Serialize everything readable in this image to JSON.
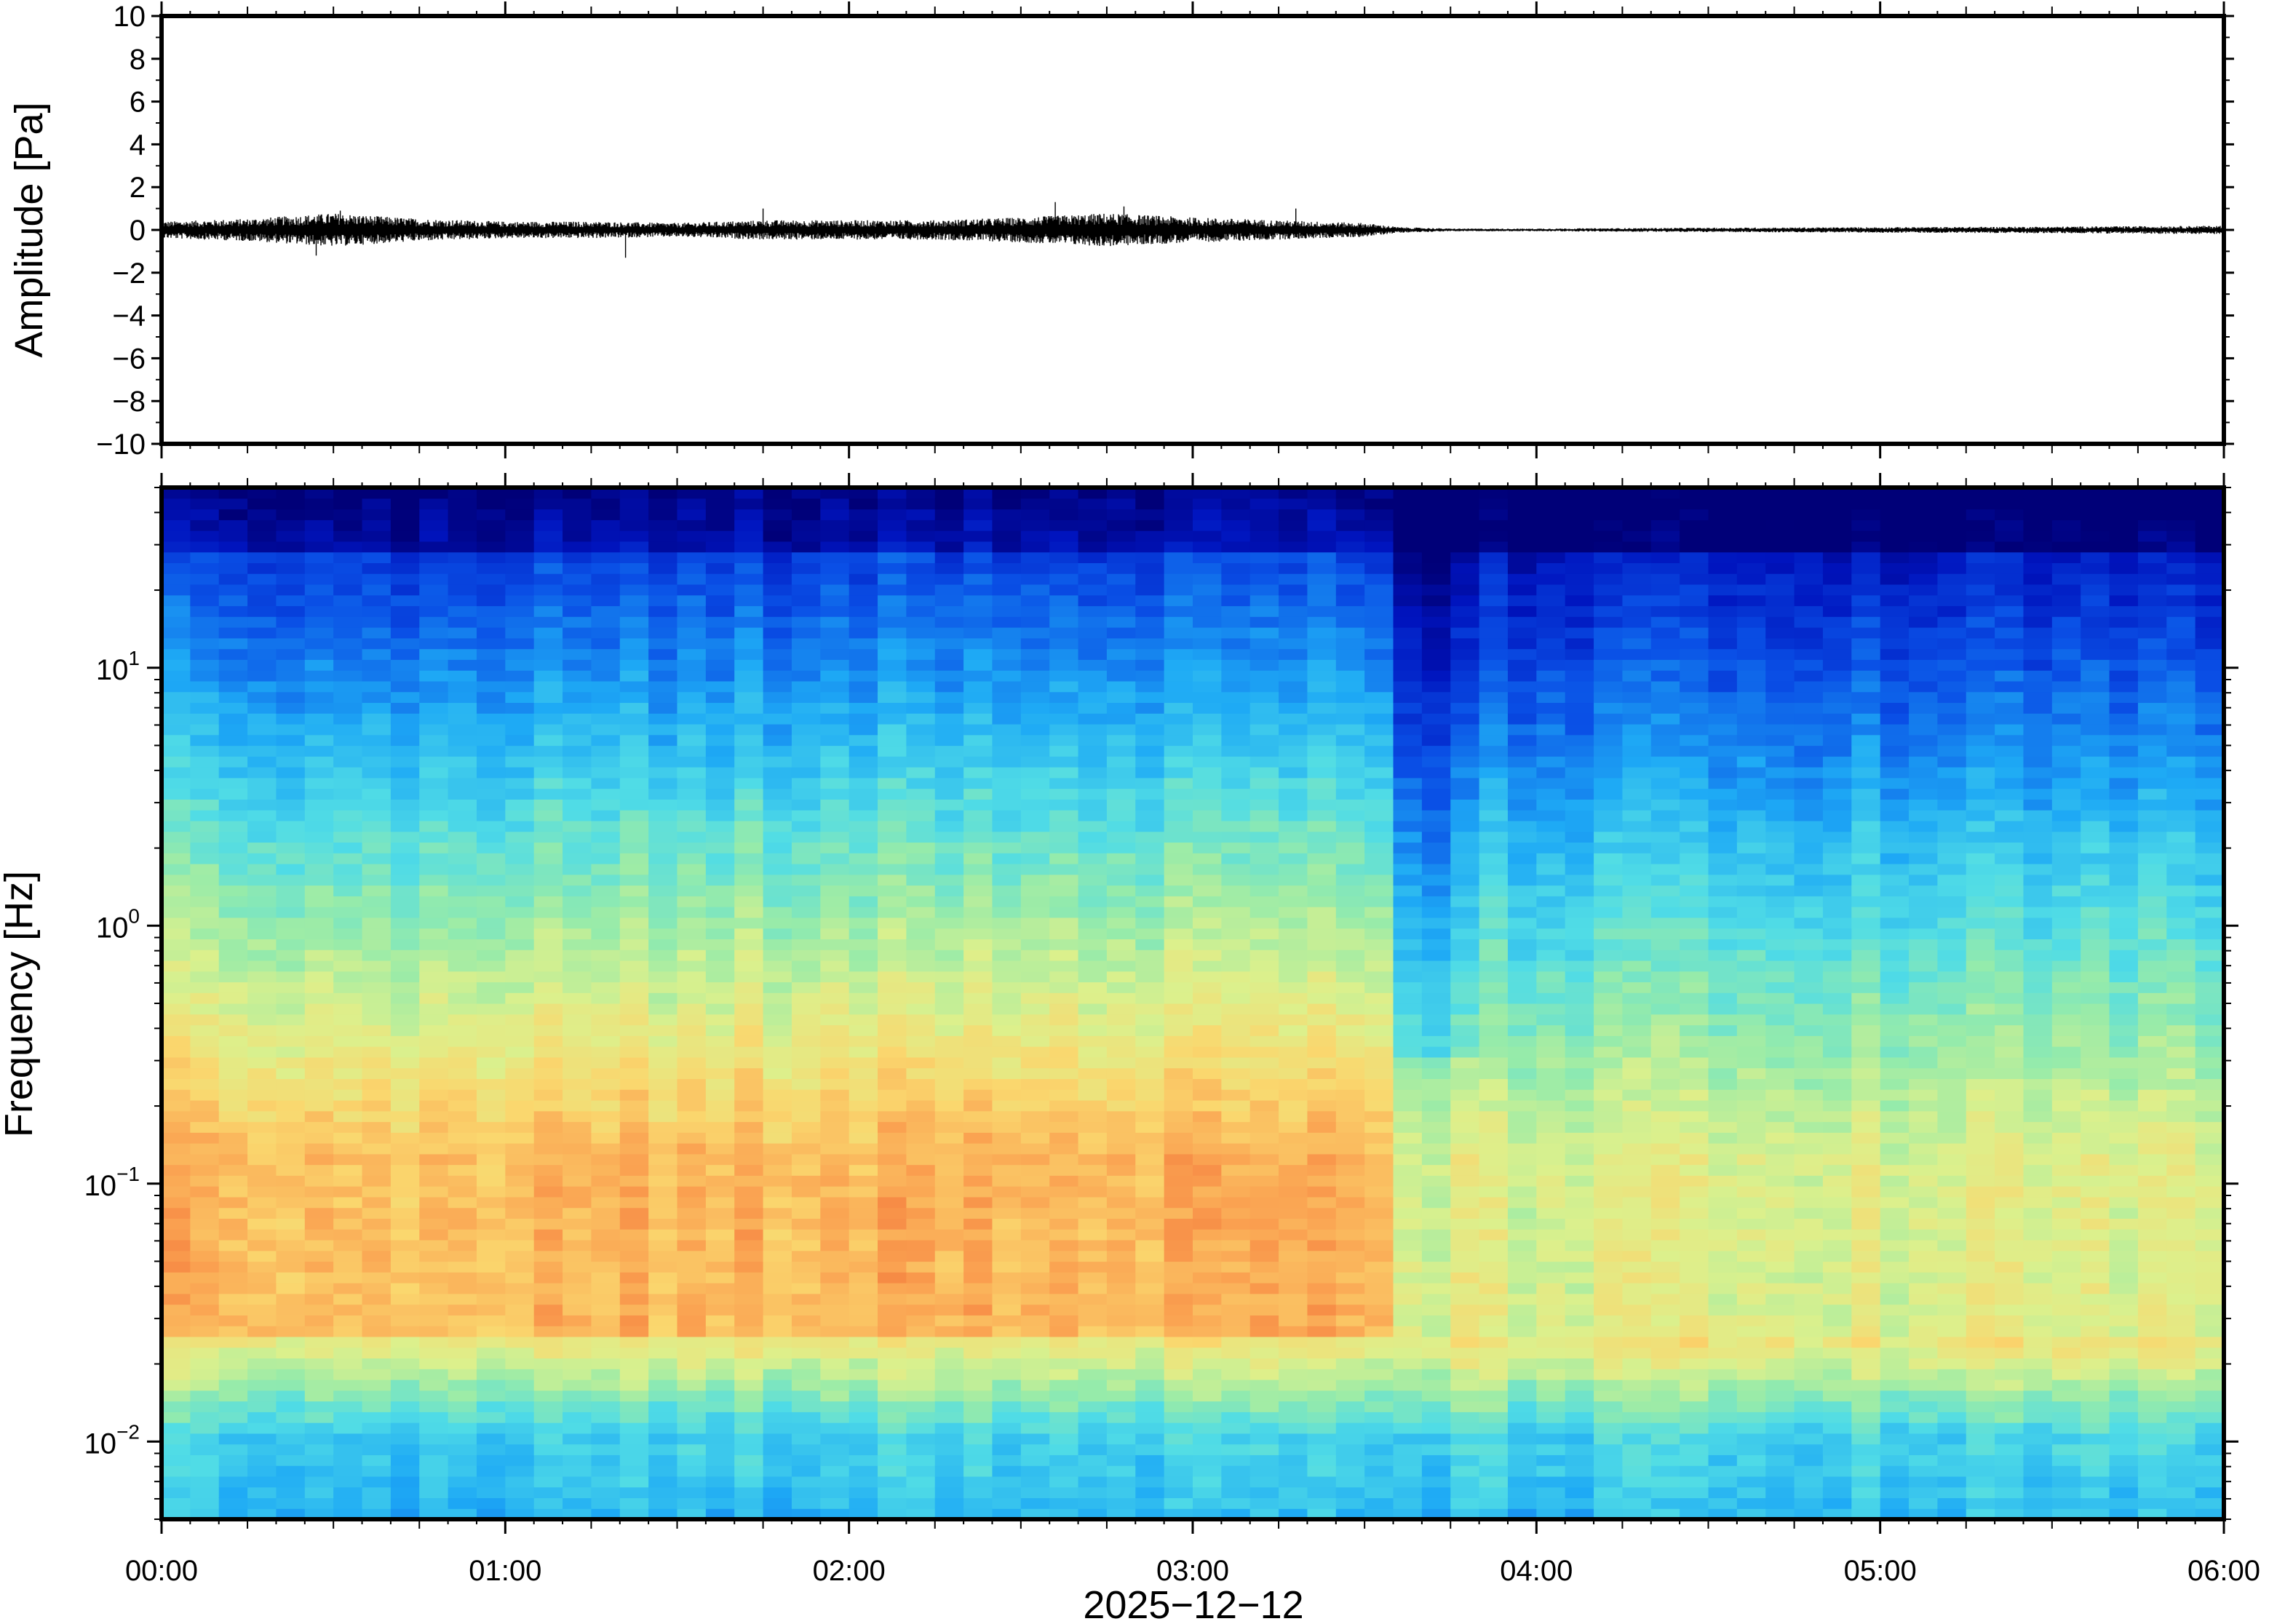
{
  "chart_data": [
    {
      "type": "line",
      "panel": "waveform",
      "ylabel": "Amplitude [Pa]",
      "ylim": [
        -10,
        10
      ],
      "yticks": [
        "10",
        "8",
        "6",
        "4",
        "2",
        "0",
        "−2",
        "−4",
        "−6",
        "−8",
        "−10"
      ],
      "ytick_values": [
        10,
        8,
        6,
        4,
        2,
        0,
        -2,
        -4,
        -6,
        -8,
        -10
      ],
      "xlim_hours": [
        0,
        6
      ],
      "series": [
        {
          "line_color": "#000000",
          "envelope_hours": [
            0,
            0.25,
            0.5,
            0.75,
            1.0,
            1.25,
            1.5,
            1.75,
            2.0,
            2.25,
            2.5,
            2.75,
            3.0,
            3.25,
            3.5,
            3.6,
            3.75,
            4.0,
            4.5,
            5.0,
            5.5,
            6.0
          ],
          "envelope_pa": [
            0.3,
            0.4,
            0.6,
            0.4,
            0.3,
            0.3,
            0.25,
            0.35,
            0.35,
            0.35,
            0.45,
            0.6,
            0.45,
            0.35,
            0.25,
            0.1,
            0.05,
            0.05,
            0.08,
            0.1,
            0.12,
            0.15
          ],
          "spikes": [
            {
              "t": 0.45,
              "v": -1.2
            },
            {
              "t": 0.52,
              "v": 0.9
            },
            {
              "t": 1.35,
              "v": -1.3
            },
            {
              "t": 1.75,
              "v": 1.0
            },
            {
              "t": 2.6,
              "v": 1.3
            },
            {
              "t": 2.8,
              "v": 1.1
            },
            {
              "t": 3.3,
              "v": 1.0
            }
          ]
        }
      ]
    },
    {
      "type": "heatmap",
      "panel": "spectrogram",
      "ylabel": "Frequency [Hz]",
      "yscale": "log",
      "ylim_hz": [
        0.005,
        50
      ],
      "yticks": [
        {
          "value": 10,
          "base": "10",
          "exp": "1"
        },
        {
          "value": 1,
          "base": "10",
          "exp": "0"
        },
        {
          "value": 0.1,
          "base": "10",
          "exp": "−1"
        },
        {
          "value": 0.01,
          "base": "10",
          "exp": "−2"
        }
      ],
      "colormap": "jet-like (dark blue = low power, red = high power)",
      "xlabel": "2025−12−12",
      "xticks": [
        "00:00",
        "01:00",
        "02:00",
        "03:00",
        "04:00",
        "05:00",
        "06:00"
      ],
      "xtick_hours": [
        0,
        1,
        2,
        3,
        4,
        5,
        6
      ],
      "xlim_hours": [
        0,
        6
      ],
      "quiet_period_start_hours": 3.55
    }
  ]
}
